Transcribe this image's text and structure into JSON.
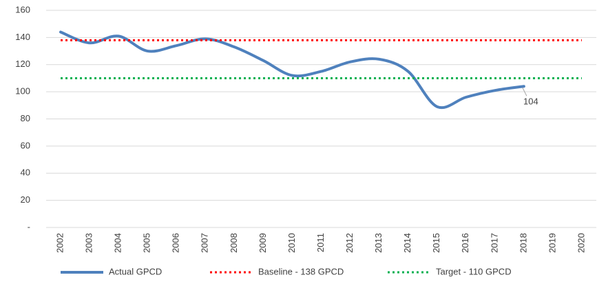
{
  "chart_data": {
    "type": "line",
    "categories": [
      "2002",
      "2003",
      "2004",
      "2005",
      "2006",
      "2007",
      "2008",
      "2009",
      "2010",
      "2011",
      "2012",
      "2013",
      "2014",
      "2015",
      "2016",
      "2017",
      "2018",
      "2019",
      "2020"
    ],
    "series": [
      {
        "name": "Actual GPCD",
        "color": "#4f81bd",
        "style": "solid",
        "values": [
          144,
          136,
          141,
          130,
          134,
          139,
          133,
          123,
          112,
          115,
          122,
          124,
          115,
          89,
          96,
          101,
          104,
          null,
          null
        ],
        "value_labels": [
          null,
          null,
          null,
          null,
          null,
          null,
          null,
          null,
          null,
          null,
          null,
          null,
          null,
          null,
          null,
          null,
          "104",
          null,
          null
        ]
      },
      {
        "name": "Baseline - 138 GPCD",
        "color": "#ff0000",
        "style": "dotted",
        "values": [
          138,
          138,
          138,
          138,
          138,
          138,
          138,
          138,
          138,
          138,
          138,
          138,
          138,
          138,
          138,
          138,
          138,
          138,
          138
        ]
      },
      {
        "name": "Target - 110 GPCD",
        "color": "#00b050",
        "style": "dotted",
        "values": [
          110,
          110,
          110,
          110,
          110,
          110,
          110,
          110,
          110,
          110,
          110,
          110,
          110,
          110,
          110,
          110,
          110,
          110,
          110
        ]
      }
    ],
    "ylim": [
      0,
      160
    ],
    "yticks": [
      {
        "value": 0,
        "label": "-"
      },
      20,
      40,
      60,
      80,
      100,
      120,
      140,
      160
    ],
    "grid": true,
    "legend": "bottom"
  }
}
